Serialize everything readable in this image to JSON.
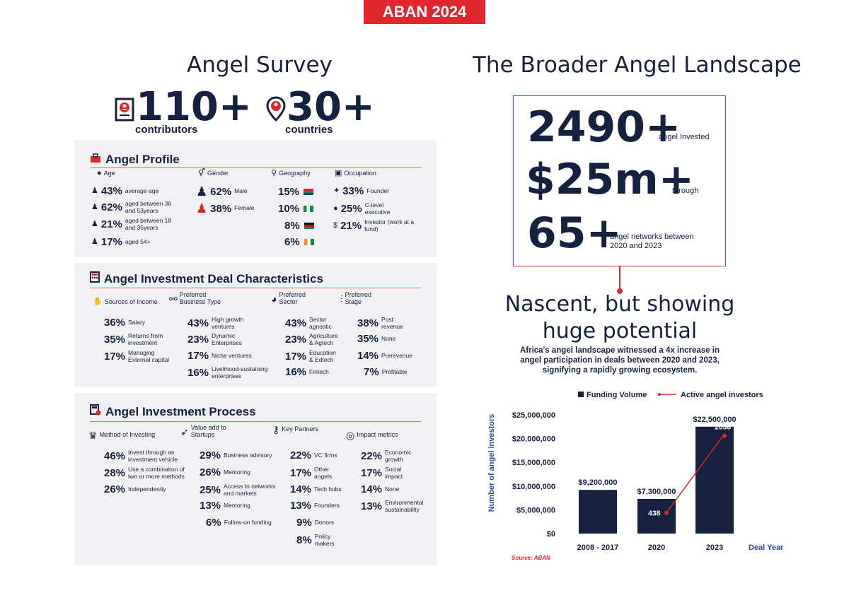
{
  "banner": "ABAN 2024",
  "survey": {
    "title": "Angel Survey",
    "contributors_num": "110+",
    "contributors_label": "contributors",
    "countries_num": "30+",
    "countries_label": "countries"
  },
  "profile": {
    "title": "Angel Profile",
    "col_age": "Age",
    "col_gender": "Gender",
    "col_geo": "Geography",
    "col_occ": "Occupation",
    "age": [
      {
        "pct": "43%",
        "label": "average age"
      },
      {
        "pct": "62%",
        "label": "aged between 36 and 53years"
      },
      {
        "pct": "21%",
        "label": "aged between 18 and 35years"
      },
      {
        "pct": "17%",
        "label": "aged 54+"
      }
    ],
    "gender": [
      {
        "pct": "62%",
        "label": "Male"
      },
      {
        "pct": "38%",
        "label": "Female"
      }
    ],
    "geography": [
      {
        "pct": "15%",
        "flag": "south-africa"
      },
      {
        "pct": "10%",
        "flag": "nigeria"
      },
      {
        "pct": "8%",
        "flag": "kenya"
      },
      {
        "pct": "6%",
        "flag": "ivory-coast"
      }
    ],
    "occupation": [
      {
        "pct": "33%",
        "label": "Founder"
      },
      {
        "pct": "25%",
        "label": "C-level executive"
      },
      {
        "pct": "21%",
        "label": "Investor (work at a fund)"
      }
    ]
  },
  "deal": {
    "title": "Angel Investment Deal Characteristics",
    "col1": "Sources of Income",
    "col2": "Preferred Business Type",
    "col3": "Preferred Sector",
    "col4": "Preferred Stage",
    "income": [
      {
        "pct": "36%",
        "label": "Salary"
      },
      {
        "pct": "35%",
        "label": "Returns from investment"
      },
      {
        "pct": "17%",
        "label": "Managing External capital"
      }
    ],
    "business": [
      {
        "pct": "43%",
        "label": "High growth ventures"
      },
      {
        "pct": "23%",
        "label": "Dynamic Enterprises"
      },
      {
        "pct": "17%",
        "label": "Niche ventures"
      },
      {
        "pct": "16%",
        "label": "Livelihood-sustaining enterprises"
      }
    ],
    "sector": [
      {
        "pct": "43%",
        "label": "Sector agnostic"
      },
      {
        "pct": "23%",
        "label": "Agriculture & Agtech"
      },
      {
        "pct": "17%",
        "label": "Education & Edtech"
      },
      {
        "pct": "16%",
        "label": "Fintech"
      }
    ],
    "stage": [
      {
        "pct": "38%",
        "label": "Post revenue"
      },
      {
        "pct": "35%",
        "label": "None"
      },
      {
        "pct": "14%",
        "label": "Prerevenue"
      },
      {
        "pct": "7%",
        "label": "Profitable"
      }
    ]
  },
  "process": {
    "title": "Angel Investment Process",
    "col1": "Method of Investing",
    "col2": "Value add to Startups",
    "col3": "Key Partners",
    "col4": "Impact metrics",
    "method": [
      {
        "pct": "46%",
        "label": "Invest through an investment vehicle"
      },
      {
        "pct": "28%",
        "label": "Use a combination of two or more methods"
      },
      {
        "pct": "26%",
        "label": "Independently"
      }
    ],
    "value": [
      {
        "pct": "29%",
        "label": "Business advisory"
      },
      {
        "pct": "26%",
        "label": "Mentoring"
      },
      {
        "pct": "25%",
        "label": "Access to networks and markets"
      },
      {
        "pct": "13%",
        "label": "Mentoring"
      },
      {
        "pct": "6%",
        "label": "Follow-on funding"
      }
    ],
    "partners": [
      {
        "pct": "22%",
        "label": "VC firms"
      },
      {
        "pct": "17%",
        "label": "Other angels"
      },
      {
        "pct": "14%",
        "label": "Tech hubs"
      },
      {
        "pct": "13%",
        "label": "Founders"
      },
      {
        "pct": "9%",
        "label": "Donors"
      },
      {
        "pct": "8%",
        "label": "Policy makers"
      }
    ],
    "impact": [
      {
        "pct": "22%",
        "label": "Economic growth"
      },
      {
        "pct": "17%",
        "label": "Social impact"
      },
      {
        "pct": "14%",
        "label": "None"
      },
      {
        "pct": "13%",
        "label": "Environmental sustainability"
      }
    ]
  },
  "landscape": {
    "title": "The Broader Angel Landscape",
    "n1": "2490+",
    "n1_label": "angel Invested",
    "n2": "$25m+",
    "n2_label": "through",
    "n3": "65+",
    "n3_label": "angel networks between 2020 and 2023",
    "headline": "Nascent, but showing huge potential",
    "desc": "Africa's angel landscape witnessed a 4x increase in angel participation in deals between 2020 and 2023, signifying a rapidly growing ecosystem.",
    "source": "Source: ABAN"
  },
  "chart_data": {
    "type": "bar",
    "categories": [
      "2008 - 2017",
      "2020",
      "2023"
    ],
    "series": [
      {
        "name": "Funding Volume",
        "type": "bar",
        "values": [
          9200000,
          7300000,
          22500000
        ],
        "labels": [
          "$9,200,000",
          "$7,300,000",
          "$22,500,000"
        ]
      },
      {
        "name": "Active angel investors",
        "type": "line",
        "x": [
          "2020",
          "2023"
        ],
        "values": [
          438,
          2058
        ],
        "labels": [
          "438",
          "2058"
        ]
      }
    ],
    "xlabel": "Deal Year",
    "ylabel": "Number of angel investors",
    "ylim": [
      0,
      25000000
    ],
    "yticks": [
      "$0",
      "$5,000,000",
      "$10,000,000",
      "$15,000,000",
      "$20,000,000",
      "$25,000,000"
    ],
    "legend_position": "top",
    "bar_color": "#16203f",
    "line_color": "#e0262b"
  }
}
